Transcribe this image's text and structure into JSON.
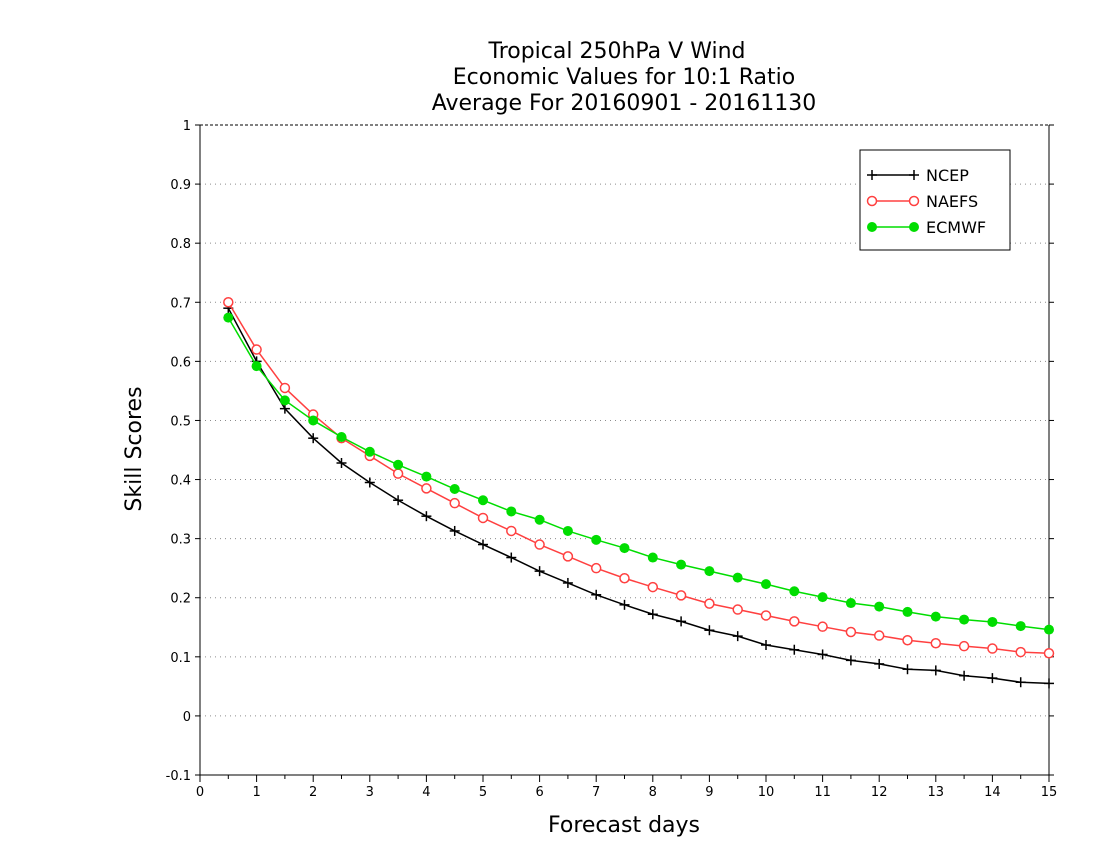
{
  "chart_data": {
    "type": "line",
    "title_lines": [
      "Tropical 250hPa V Wind",
      "Economic Values for 10:1 Ratio",
      "Average For 20160901 - 20161130"
    ],
    "xlabel": "Forecast days",
    "ylabel": "Skill Scores",
    "xlim": [
      0,
      15
    ],
    "ylim": [
      -0.1,
      1
    ],
    "xticks": [
      0,
      1,
      2,
      3,
      4,
      5,
      6,
      7,
      8,
      9,
      10,
      11,
      12,
      13,
      14,
      15
    ],
    "xtick_labels": [
      "0",
      "1",
      "2",
      "3",
      "4",
      "5",
      "6",
      "7",
      "8",
      "9",
      "10",
      "11",
      "12",
      "13",
      "14",
      "15"
    ],
    "yticks": [
      -0.1,
      0,
      0.1,
      0.2,
      0.3,
      0.4,
      0.5,
      0.6,
      0.7,
      0.8,
      0.9,
      1
    ],
    "ytick_labels": [
      "-0.1",
      "0",
      "0.1",
      "0.2",
      "0.3",
      "0.4",
      "0.5",
      "0.6",
      "0.7",
      "0.8",
      "0.9",
      "1"
    ],
    "grid": "horizontal-dotted",
    "legend_position": "top-right",
    "x": [
      0.5,
      1,
      1.5,
      2,
      2.5,
      3,
      3.5,
      4,
      4.5,
      5,
      5.5,
      6,
      6.5,
      7,
      7.5,
      8,
      8.5,
      9,
      9.5,
      10,
      10.5,
      11,
      11.5,
      12,
      12.5,
      13,
      13.5,
      14,
      14.5,
      15
    ],
    "series": [
      {
        "name": "NCEP",
        "color": "#000000",
        "marker": "plus",
        "values": [
          0.69,
          0.6,
          0.52,
          0.47,
          0.428,
          0.395,
          0.365,
          0.338,
          0.313,
          0.29,
          0.268,
          0.245,
          0.225,
          0.205,
          0.188,
          0.172,
          0.16,
          0.145,
          0.135,
          0.12,
          0.112,
          0.104,
          0.094,
          0.088,
          0.079,
          0.077,
          0.068,
          0.064,
          0.057,
          0.055
        ]
      },
      {
        "name": "NAEFS",
        "color": "#ff4040",
        "marker": "open-circle",
        "values": [
          0.7,
          0.62,
          0.555,
          0.51,
          0.47,
          0.44,
          0.41,
          0.385,
          0.36,
          0.335,
          0.313,
          0.29,
          0.27,
          0.25,
          0.233,
          0.218,
          0.204,
          0.19,
          0.18,
          0.17,
          0.16,
          0.151,
          0.142,
          0.136,
          0.128,
          0.123,
          0.118,
          0.114,
          0.108,
          0.106
        ]
      },
      {
        "name": "ECMWF",
        "color": "#00dd00",
        "marker": "filled-circle",
        "values": [
          0.674,
          0.592,
          0.534,
          0.5,
          0.472,
          0.447,
          0.425,
          0.405,
          0.384,
          0.365,
          0.346,
          0.332,
          0.313,
          0.298,
          0.284,
          0.268,
          0.256,
          0.245,
          0.234,
          0.223,
          0.211,
          0.201,
          0.191,
          0.185,
          0.176,
          0.168,
          0.163,
          0.159,
          0.152,
          0.146
        ]
      }
    ]
  }
}
